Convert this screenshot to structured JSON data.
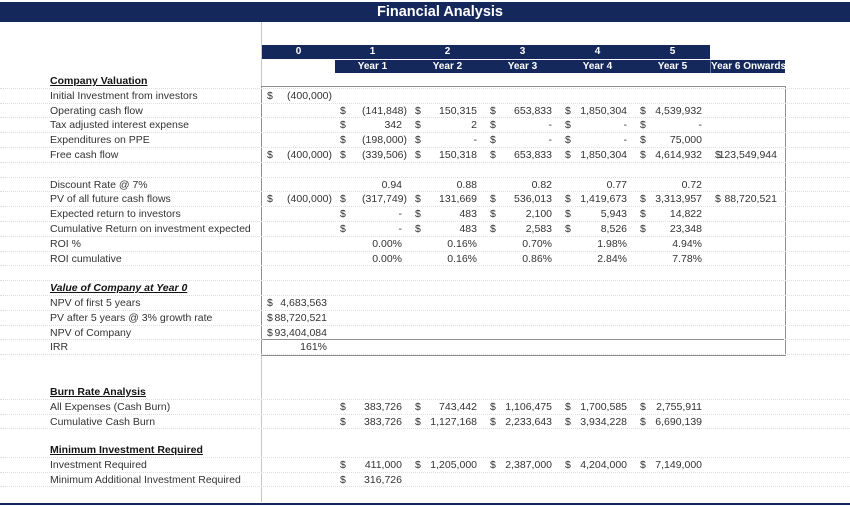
{
  "title": "Financial Analysis",
  "colors": {
    "navy": "#14285C",
    "box_border": "#8F8F8F",
    "gridline": "#DEDEDE",
    "column_line": "#C8C8C8"
  },
  "header": {
    "period_numbers": [
      "0",
      "1",
      "2",
      "3",
      "4",
      "5"
    ],
    "period_years": [
      "Year 1",
      "Year 2",
      "Year 3",
      "Year 4",
      "Year 5"
    ],
    "year6_label": "Year 6 Onwards"
  },
  "blocks": [
    {
      "id": "main",
      "name": "company-valuation-section",
      "rows": [
        {
          "label": "Company Valuation",
          "h": 1
        },
        {
          "label": "Initial Investment from investors",
          "cells": [
            {
              "d": "$",
              "v": "(400,000)"
            },
            null,
            null,
            null,
            null,
            null,
            null
          ]
        },
        {
          "label": "Operating cash flow",
          "cells": [
            null,
            {
              "d": "$",
              "v": "(141,848)"
            },
            {
              "d": "$",
              "v": "150,315"
            },
            {
              "d": "$",
              "v": "653,833"
            },
            {
              "d": "$",
              "v": "1,850,304"
            },
            {
              "d": "$",
              "v": "4,539,932"
            },
            null
          ]
        },
        {
          "label": "Tax adjusted interest expense",
          "cells": [
            null,
            {
              "d": "$",
              "v": "342"
            },
            {
              "d": "$",
              "v": "2"
            },
            {
              "d": "$",
              "v": "-"
            },
            {
              "d": "$",
              "v": "-"
            },
            {
              "d": "$",
              "v": "-"
            },
            null
          ]
        },
        {
          "label": "Expenditures on PPE",
          "cells": [
            null,
            {
              "d": "$",
              "v": "(198,000)"
            },
            {
              "d": "$",
              "v": "-"
            },
            {
              "d": "$",
              "v": "-"
            },
            {
              "d": "$",
              "v": "-"
            },
            {
              "d": "$",
              "v": "75,000"
            },
            null
          ]
        },
        {
          "label": "Free cash flow",
          "cells": [
            {
              "d": "$",
              "v": "(400,000)"
            },
            {
              "d": "$",
              "v": "(339,506)"
            },
            {
              "d": "$",
              "v": "150,318"
            },
            {
              "d": "$",
              "v": "653,833"
            },
            {
              "d": "$",
              "v": "1,850,304"
            },
            {
              "d": "$",
              "v": "4,614,932"
            },
            {
              "d": "$",
              "v": "123,549,944"
            }
          ]
        },
        {
          "spacer": true
        },
        {
          "label": "Discount Rate @ 7%",
          "cells": [
            null,
            {
              "v": "0.94"
            },
            {
              "v": "0.88"
            },
            {
              "v": "0.82"
            },
            {
              "v": "0.77"
            },
            {
              "v": "0.72"
            },
            null
          ]
        },
        {
          "label": "PV of all future cash flows",
          "cells": [
            {
              "d": "$",
              "v": "(400,000)"
            },
            {
              "d": "$",
              "v": "(317,749)"
            },
            {
              "d": "$",
              "v": "131,669"
            },
            {
              "d": "$",
              "v": "536,013"
            },
            {
              "d": "$",
              "v": "1,419,673"
            },
            {
              "d": "$",
              "v": "3,313,957"
            },
            {
              "d": "$",
              "v": "88,720,521"
            }
          ]
        },
        {
          "label": "Expected return to investors",
          "cells": [
            null,
            {
              "d": "$",
              "v": "-"
            },
            {
              "d": "$",
              "v": "483"
            },
            {
              "d": "$",
              "v": "2,100"
            },
            {
              "d": "$",
              "v": "5,943"
            },
            {
              "d": "$",
              "v": "14,822"
            },
            null
          ]
        },
        {
          "label": "Cumulative Return on investment expected",
          "cells": [
            null,
            {
              "d": "$",
              "v": "-"
            },
            {
              "d": "$",
              "v": "483"
            },
            {
              "d": "$",
              "v": "2,583"
            },
            {
              "d": "$",
              "v": "8,526"
            },
            {
              "d": "$",
              "v": "23,348"
            },
            null
          ]
        },
        {
          "label": "ROI %",
          "cells": [
            null,
            {
              "v": "0.00%"
            },
            {
              "v": "0.16%"
            },
            {
              "v": "0.70%"
            },
            {
              "v": "1.98%"
            },
            {
              "v": "4.94%"
            },
            null
          ]
        },
        {
          "label": "ROI cumulative",
          "cells": [
            null,
            {
              "v": "0.00%"
            },
            {
              "v": "0.16%"
            },
            {
              "v": "0.86%"
            },
            {
              "v": "2.84%"
            },
            {
              "v": "7.78%"
            },
            null
          ]
        },
        {
          "spacer": true
        },
        {
          "label": "Value of Company at Year 0",
          "h": 2
        },
        {
          "label": "NPV of first 5 years",
          "cells": [
            {
              "d": "$",
              "v": "4,683,563"
            },
            null,
            null,
            null,
            null,
            null,
            null
          ]
        },
        {
          "label": "PV after 5 years @ 3% growth rate",
          "cells": [
            {
              "d": "$",
              "v": "88,720,521"
            },
            null,
            null,
            null,
            null,
            null,
            null
          ]
        },
        {
          "label": "NPV of Company",
          "cells": [
            {
              "d": "$",
              "v": "93,404,084"
            },
            null,
            null,
            null,
            null,
            null,
            null
          ]
        },
        {
          "label": "IRR",
          "rule": true,
          "cells": [
            {
              "v": "161%"
            },
            null,
            null,
            null,
            null,
            null,
            null
          ]
        }
      ]
    },
    {
      "id": "burn",
      "name": "burn-rate-section",
      "rows": [
        {
          "label": "Burn Rate Analysis",
          "h": 1
        },
        {
          "label": "All Expenses (Cash Burn)",
          "cells": [
            null,
            {
              "d": "$",
              "v": "383,726"
            },
            {
              "d": "$",
              "v": "743,442"
            },
            {
              "d": "$",
              "v": "1,106,475"
            },
            {
              "d": "$",
              "v": "1,700,585"
            },
            {
              "d": "$",
              "v": "2,755,911"
            },
            null
          ]
        },
        {
          "label": "Cumulative Cash Burn",
          "cells": [
            null,
            {
              "d": "$",
              "v": "383,726"
            },
            {
              "d": "$",
              "v": "1,127,168"
            },
            {
              "d": "$",
              "v": "2,233,643"
            },
            {
              "d": "$",
              "v": "3,934,228"
            },
            {
              "d": "$",
              "v": "6,690,139"
            },
            null
          ]
        }
      ]
    },
    {
      "id": "min",
      "name": "minimum-investment-section",
      "rows": [
        {
          "label": "Minimum Investment Required",
          "h": 1
        },
        {
          "label": "Investment Required",
          "cells": [
            null,
            {
              "d": "$",
              "v": "411,000"
            },
            {
              "d": "$",
              "v": "1,205,000"
            },
            {
              "d": "$",
              "v": "2,387,000"
            },
            {
              "d": "$",
              "v": "4,204,000"
            },
            {
              "d": "$",
              "v": "7,149,000"
            },
            null
          ]
        },
        {
          "label": "Minimum Additional Investment Required",
          "cells": [
            null,
            {
              "d": "$",
              "v": "316,726"
            },
            null,
            null,
            null,
            null,
            null
          ]
        }
      ]
    }
  ]
}
